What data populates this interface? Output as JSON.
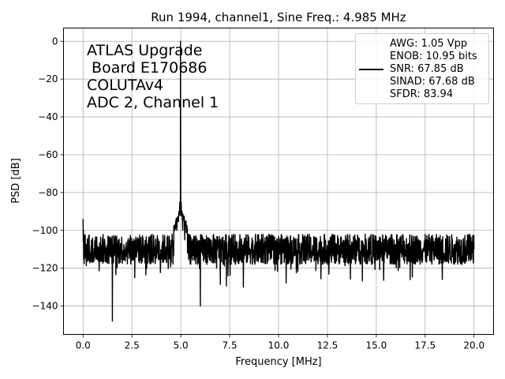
{
  "chart_data": {
    "type": "line",
    "title": "Run 1994, channel1, Sine Freq.: 4.985 MHz",
    "xlabel": "Frequency [MHz]",
    "ylabel": "PSD [dB]",
    "xlim": [
      -1.0,
      21.0
    ],
    "ylim": [
      -155,
      7
    ],
    "xticks": [
      0.0,
      2.5,
      5.0,
      7.5,
      10.0,
      12.5,
      15.0,
      17.5,
      20.0
    ],
    "xtick_labels": [
      "0.0",
      "2.5",
      "5.0",
      "7.5",
      "10.0",
      "12.5",
      "15.0",
      "17.5",
      "20.0"
    ],
    "yticks": [
      0,
      -20,
      -40,
      -60,
      -80,
      -100,
      -120,
      -140
    ],
    "ytick_labels": [
      "0",
      "−20",
      "−40",
      "−60",
      "−80",
      "−100",
      "−120",
      "−140"
    ],
    "grid": true,
    "legend_position": "top-right",
    "series_color": "#000000",
    "annotation_lines": [
      "ATLAS Upgrade",
      " Board E170686",
      "COLUTAv4",
      "ADC 2, Channel 1"
    ],
    "legend_lines": [
      "AWG: 1.05 Vpp",
      "ENOB: 10.95 bits",
      "SNR: 67.85 dB",
      "SINAD: 67.68 dB",
      "SFDR: 83.94"
    ],
    "series": [
      {
        "noise_floor_db": -110,
        "x": [
          0.0,
          0.02,
          0.05,
          1.5,
          4.8,
          4.9,
          4.95,
          4.985,
          5.02,
          5.05,
          5.1,
          5.2,
          6.0,
          8.2,
          20.0
        ],
        "y": [
          -94,
          -100,
          -104,
          -148,
          -100,
          -90,
          -85,
          0,
          -85,
          -90,
          -100,
          -105,
          -140,
          -130,
          -110
        ]
      }
    ]
  }
}
